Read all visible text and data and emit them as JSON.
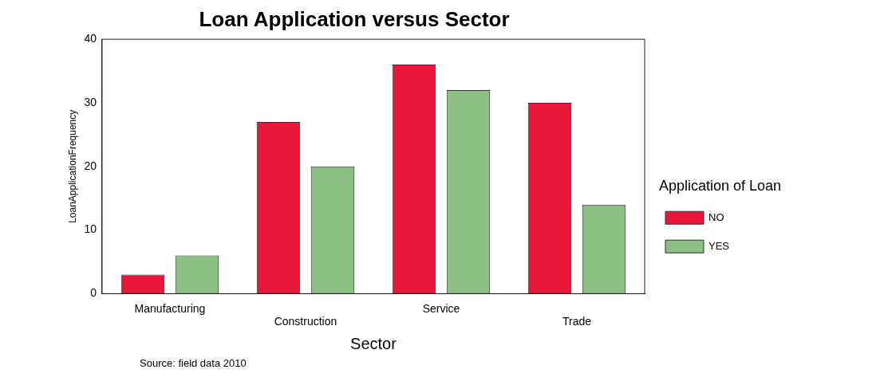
{
  "chart_data": {
    "type": "bar",
    "title": "Loan Application versus Sector",
    "xlabel": "Sector",
    "ylabel": "LoanApplicationFrequency",
    "legend_title": "Application of Loan",
    "categories": [
      "Manufacturing",
      "Construction",
      "Service",
      "Trade"
    ],
    "series": [
      {
        "name": "NO",
        "color": "#e8173a",
        "values": [
          3,
          27,
          36,
          30
        ]
      },
      {
        "name": "YES",
        "color": "#8cbf84",
        "values": [
          6,
          20,
          32,
          14
        ]
      }
    ],
    "ylim": [
      0,
      40
    ],
    "yticks": [
      0,
      10,
      20,
      30,
      40
    ],
    "grid": false,
    "legend": "right",
    "annotations": [
      "Source: field data 2010"
    ]
  }
}
